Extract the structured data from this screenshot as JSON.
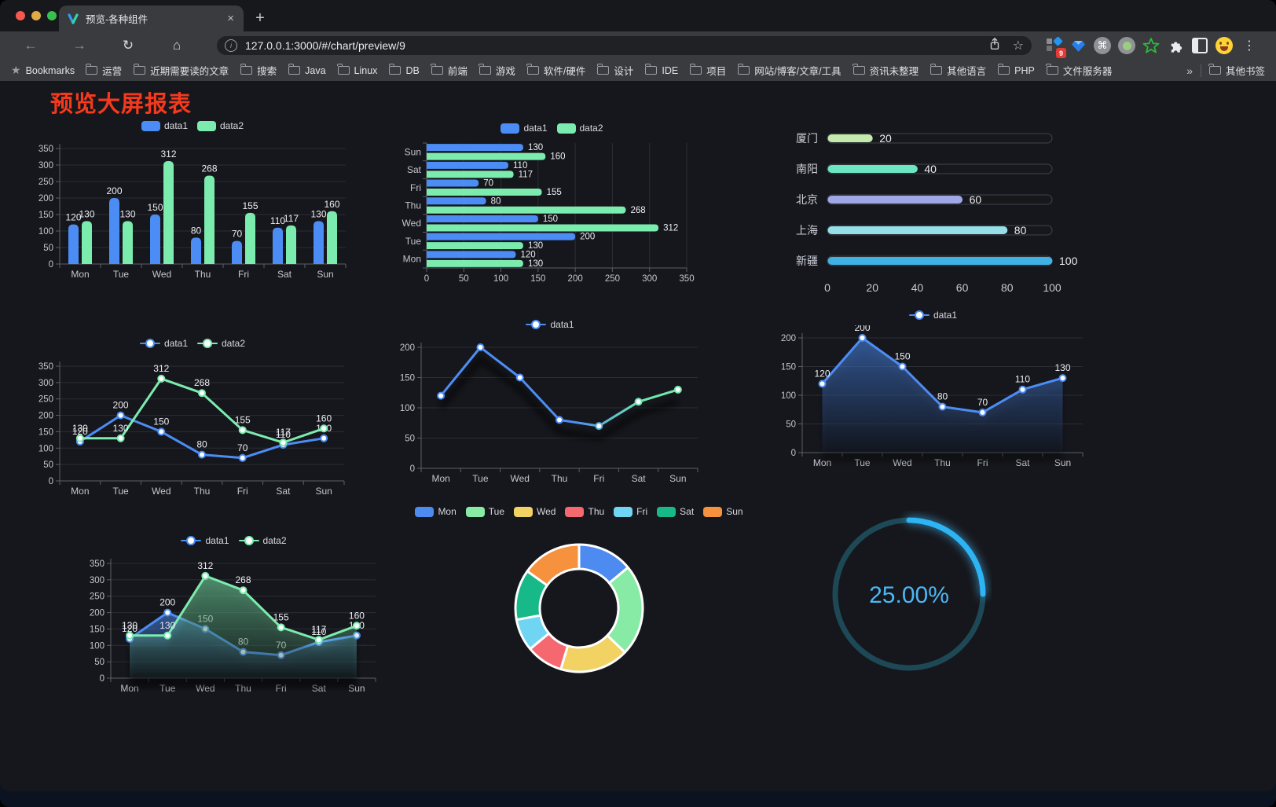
{
  "browser": {
    "tab_title": "预览-各种组件",
    "url": "127.0.0.1:3000/#/chart/preview/9",
    "bookmarks_label": "Bookmarks",
    "bookmark_folders": [
      "运营",
      "近期需要读的文章",
      "搜索",
      "Java",
      "Linux",
      "DB",
      "前端",
      "游戏",
      "软件/硬件",
      "设计",
      "IDE",
      "项目",
      "网站/博客/文章/工具",
      "资讯未整理",
      "其他语言",
      "PHP",
      "文件服务器"
    ],
    "other_bookmarks": "其他书签",
    "extension_badge": "9"
  },
  "icons": {
    "back": "←",
    "forward": "→",
    "reload": "↻",
    "home": "⌂",
    "info": "i",
    "star": "☆",
    "bookmarks_star": "★",
    "overflow": "»",
    "menu": "⋮",
    "command": "⌘",
    "tab_close": "×",
    "new_tab": "+"
  },
  "page": {
    "heading": "预览大屏报表",
    "heading_color": "#f5391d"
  },
  "chart_data": [
    {
      "id": "grouped-bar-chart",
      "type": "bar",
      "categories": [
        "Mon",
        "Tue",
        "Wed",
        "Thu",
        "Fri",
        "Sat",
        "Sun"
      ],
      "series": [
        {
          "name": "data1",
          "color": "#4c8df5",
          "values": [
            120,
            200,
            150,
            80,
            70,
            110,
            130
          ]
        },
        {
          "name": "data2",
          "color": "#7cebae",
          "values": [
            130,
            130,
            312,
            268,
            155,
            117,
            160
          ]
        }
      ],
      "ylim": [
        0,
        350
      ],
      "yticks": [
        0,
        50,
        100,
        150,
        200,
        250,
        300,
        350
      ],
      "labels": true,
      "legend": "rect",
      "grid": true
    },
    {
      "id": "horizontal-bar-chart",
      "type": "hbar",
      "categories": [
        "Mon",
        "Tue",
        "Wed",
        "Thu",
        "Fri",
        "Sat",
        "Sun"
      ],
      "series": [
        {
          "name": "data1",
          "color": "#4c8df5",
          "values": [
            120,
            200,
            150,
            80,
            70,
            110,
            130
          ]
        },
        {
          "name": "data2",
          "color": "#7cebae",
          "values": [
            130,
            130,
            312,
            268,
            155,
            117,
            160
          ]
        }
      ],
      "xlim": [
        0,
        350
      ],
      "xticks": [
        0,
        50,
        100,
        150,
        200,
        250,
        300,
        350
      ],
      "labels": true,
      "legend": "rect",
      "grid": true
    },
    {
      "id": "progress-bar-list",
      "type": "progress",
      "rows": [
        {
          "label": "厦门",
          "value": 20,
          "color": "#c4ebad"
        },
        {
          "label": "南阳",
          "value": 40,
          "color": "#6be6c1"
        },
        {
          "label": "北京",
          "value": 60,
          "color": "#a0a7e6"
        },
        {
          "label": "上海",
          "value": 80,
          "color": "#96dee8"
        },
        {
          "label": "新疆",
          "value": 100,
          "color": "#3fb1e3"
        }
      ],
      "xlim": [
        0,
        100
      ],
      "xticks": [
        0,
        20,
        40,
        60,
        80,
        100
      ]
    },
    {
      "id": "line-chart-two-series",
      "type": "line",
      "categories": [
        "Mon",
        "Tue",
        "Wed",
        "Thu",
        "Fri",
        "Sat",
        "Sun"
      ],
      "series": [
        {
          "name": "data1",
          "color": "#4c8df5",
          "values": [
            120,
            200,
            150,
            80,
            70,
            110,
            130
          ]
        },
        {
          "name": "data2",
          "color": "#7cebae",
          "values": [
            130,
            130,
            312,
            268,
            155,
            117,
            160
          ]
        }
      ],
      "ylim": [
        0,
        350
      ],
      "yticks": [
        0,
        50,
        100,
        150,
        200,
        250,
        300,
        350
      ],
      "labels": true,
      "legend": "line",
      "grid": true
    },
    {
      "id": "line-chart-gradient",
      "type": "line",
      "categories": [
        "Mon",
        "Tue",
        "Wed",
        "Thu",
        "Fri",
        "Sat",
        "Sun"
      ],
      "series": [
        {
          "name": "data1",
          "color": "#4c8df5",
          "gradient": [
            "#4c8df5",
            "#6fe7ac"
          ],
          "values": [
            120,
            200,
            150,
            80,
            70,
            110,
            130
          ]
        }
      ],
      "ylim": [
        0,
        200
      ],
      "yticks": [
        0,
        50,
        100,
        150,
        200
      ],
      "labels": false,
      "legend": "line",
      "grid": true,
      "shadow": true
    },
    {
      "id": "area-line-chart",
      "type": "line",
      "categories": [
        "Mon",
        "Tue",
        "Wed",
        "Thu",
        "Fri",
        "Sat",
        "Sun"
      ],
      "series": [
        {
          "name": "data1",
          "color": "#4c8df5",
          "area": true,
          "values": [
            120,
            200,
            150,
            80,
            70,
            110,
            130
          ]
        }
      ],
      "ylim": [
        0,
        200
      ],
      "yticks": [
        0,
        50,
        100,
        150,
        200
      ],
      "labels": true,
      "legend": "line",
      "grid": true
    },
    {
      "id": "area-line-chart-two-series",
      "type": "line",
      "categories": [
        "Mon",
        "Tue",
        "Wed",
        "Thu",
        "Fri",
        "Sat",
        "Sun"
      ],
      "series": [
        {
          "name": "data1",
          "color": "#4c8df5",
          "area": true,
          "values": [
            120,
            200,
            150,
            80,
            70,
            110,
            130
          ]
        },
        {
          "name": "data2",
          "color": "#7cebae",
          "area": true,
          "values": [
            130,
            130,
            312,
            268,
            155,
            117,
            160
          ]
        }
      ],
      "ylim": [
        0,
        350
      ],
      "yticks": [
        0,
        50,
        100,
        150,
        200,
        250,
        300,
        350
      ],
      "labels": true,
      "legend": "line",
      "grid": true
    },
    {
      "id": "donut-chart",
      "type": "pie",
      "items": [
        {
          "label": "Mon",
          "value": 120,
          "color": "#4e8bf0"
        },
        {
          "label": "Tue",
          "value": 200,
          "color": "#87eba6"
        },
        {
          "label": "Wed",
          "value": 150,
          "color": "#f2d263"
        },
        {
          "label": "Thu",
          "value": 80,
          "color": "#f5686f"
        },
        {
          "label": "Fri",
          "value": 70,
          "color": "#6fd5f2"
        },
        {
          "label": "Sat",
          "value": 110,
          "color": "#17b988"
        },
        {
          "label": "Sun",
          "value": 130,
          "color": "#f6913e"
        }
      ],
      "legend": "rect"
    },
    {
      "id": "ring-progress-gauge",
      "type": "gauge",
      "percent": 25,
      "value_text": "25.00%",
      "color": "#2cb4f4",
      "track_color": "#1d4956",
      "text_color": "#4db7f5"
    }
  ]
}
